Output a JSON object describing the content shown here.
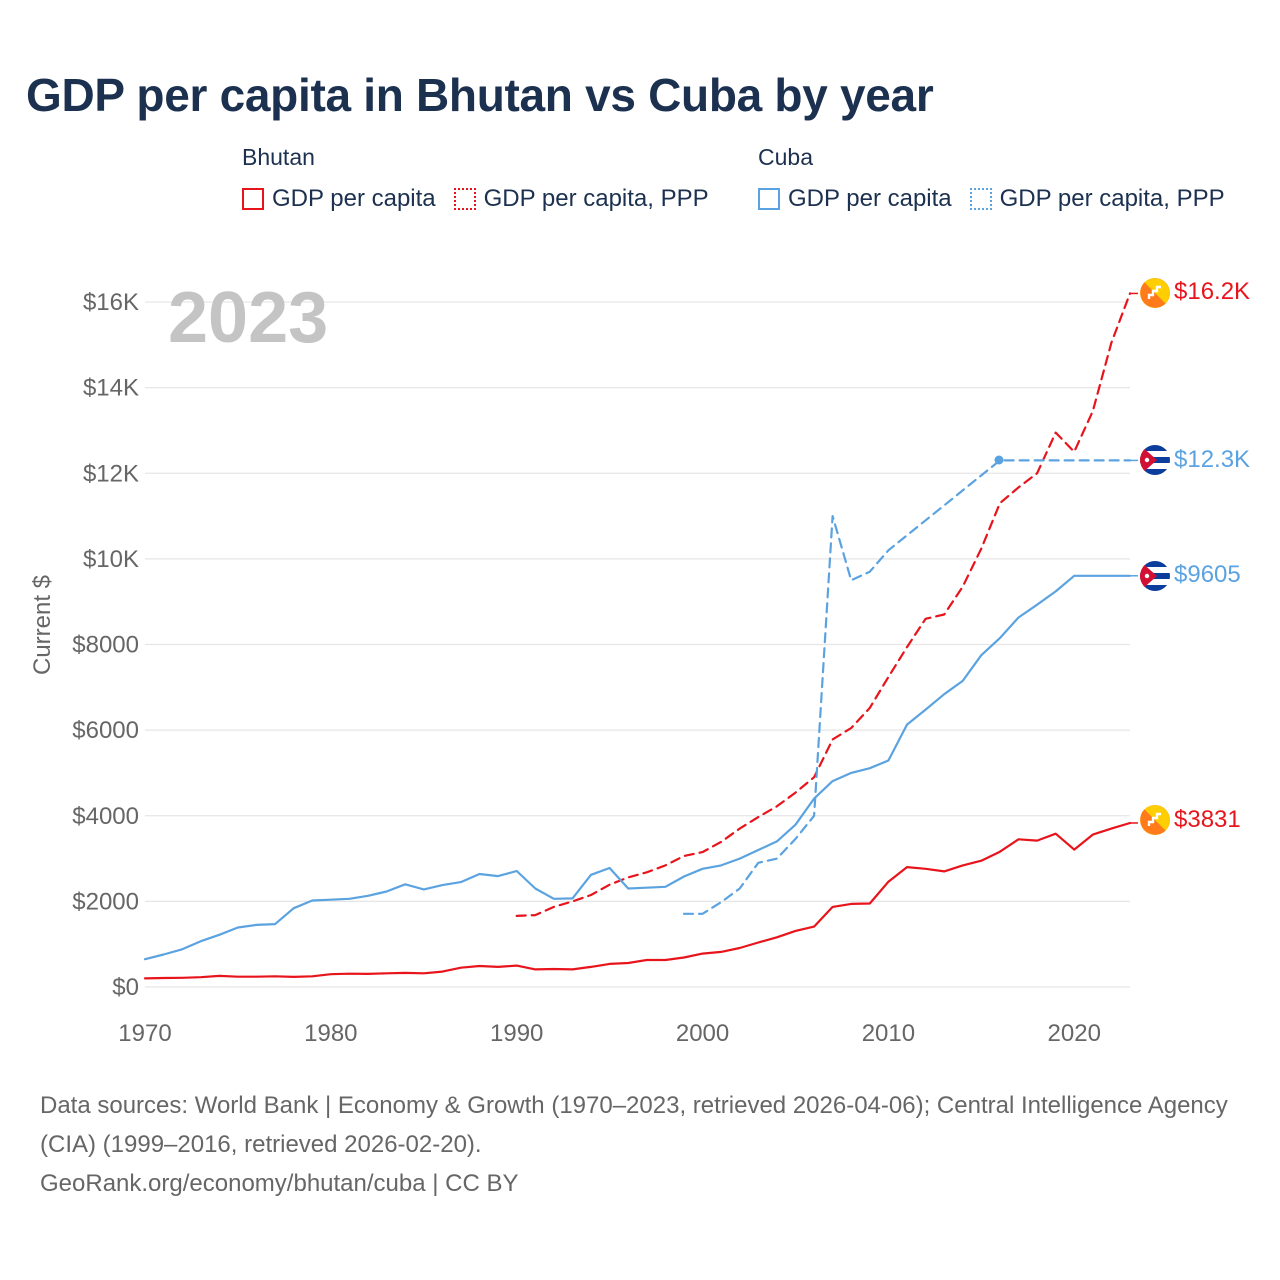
{
  "title": "GDP per capita in Bhutan vs Cuba by year",
  "legend": {
    "groups": [
      {
        "name": "Bhutan",
        "items": [
          {
            "label": "GDP per capita",
            "style": "solid",
            "color": "#e8141c"
          },
          {
            "label": "GDP per capita, PPP",
            "style": "dotted",
            "color": "#e8141c"
          }
        ]
      },
      {
        "name": "Cuba",
        "items": [
          {
            "label": "GDP per capita",
            "style": "solid",
            "color": "#5ba3e0"
          },
          {
            "label": "GDP per capita, PPP",
            "style": "dotted",
            "color": "#5ba3e0"
          }
        ]
      }
    ]
  },
  "year_watermark": "2023",
  "end_labels": {
    "bhutan_ppp": "$16.2K",
    "cuba_ppp": "$12.3K",
    "cuba_gdp": "$9605",
    "bhutan_gdp": "$3831"
  },
  "icons": {
    "bhutan_flag": "bhutan-flag-icon",
    "cuba_flag": "cuba-flag-icon"
  },
  "footer": {
    "sources": "Data sources: World Bank | Economy & Growth (1970–2023, retrieved 2026-04-06); Central Intelligence Agency (CIA) (1999–2016, retrieved 2026-02-20).",
    "credit": "GeoRank.org/economy/bhutan/cuba | CC BY"
  },
  "chart_data": {
    "type": "line",
    "title": "GDP per capita in Bhutan vs Cuba by year",
    "xlabel": "",
    "ylabel": "Current $",
    "xlim": [
      1970,
      2023
    ],
    "ylim": [
      0,
      16500
    ],
    "grid": true,
    "x_ticks": [
      1970,
      1980,
      1990,
      2000,
      2010,
      2020
    ],
    "x_tick_labels": [
      "1970",
      "1980",
      "1990",
      "2000",
      "2010",
      "2020"
    ],
    "y_ticks": [
      0,
      2000,
      4000,
      6000,
      8000,
      10000,
      12000,
      14000,
      16000
    ],
    "y_tick_labels": [
      "$0",
      "$2000",
      "$4000",
      "$6000",
      "$8000",
      "$10K",
      "$12K",
      "$14K",
      "$16K"
    ],
    "series": [
      {
        "name": "Bhutan GDP per capita",
        "color": "#e8141c",
        "dash": "solid",
        "x": [
          1970,
          1971,
          1972,
          1973,
          1974,
          1975,
          1976,
          1977,
          1978,
          1979,
          1980,
          1981,
          1982,
          1983,
          1984,
          1985,
          1986,
          1987,
          1988,
          1989,
          1990,
          1991,
          1992,
          1993,
          1994,
          1995,
          1996,
          1997,
          1998,
          1999,
          2000,
          2001,
          2002,
          2003,
          2004,
          2005,
          2006,
          2007,
          2008,
          2009,
          2010,
          2011,
          2012,
          2013,
          2014,
          2015,
          2016,
          2017,
          2018,
          2019,
          2020,
          2021,
          2022,
          2023
        ],
        "values": [
          200,
          210,
          215,
          230,
          260,
          240,
          240,
          250,
          235,
          250,
          300,
          310,
          305,
          320,
          330,
          320,
          360,
          450,
          490,
          470,
          500,
          410,
          420,
          410,
          470,
          540,
          560,
          630,
          630,
          690,
          780,
          820,
          910,
          1040,
          1160,
          1310,
          1410,
          1870,
          1940,
          1950,
          2460,
          2800,
          2760,
          2700,
          2840,
          2950,
          3160,
          3450,
          3420,
          3580,
          3210,
          3560,
          3700,
          3831
        ]
      },
      {
        "name": "Bhutan GDP per capita, PPP",
        "color": "#e8141c",
        "dash": "dashed",
        "x": [
          1990,
          1991,
          1992,
          1993,
          1994,
          1995,
          1996,
          1997,
          1998,
          1999,
          2000,
          2001,
          2002,
          2003,
          2004,
          2005,
          2006,
          2007,
          2008,
          2009,
          2010,
          2011,
          2012,
          2013,
          2014,
          2015,
          2016,
          2017,
          2018,
          2019,
          2020,
          2021,
          2022,
          2023
        ],
        "values": [
          1660,
          1680,
          1870,
          2000,
          2150,
          2390,
          2560,
          2680,
          2840,
          3060,
          3150,
          3390,
          3700,
          3970,
          4220,
          4540,
          4900,
          5780,
          6050,
          6520,
          7240,
          7940,
          8600,
          8700,
          9350,
          10240,
          11300,
          11670,
          12000,
          12950,
          12500,
          13450,
          15050,
          16200
        ]
      },
      {
        "name": "Cuba GDP per capita",
        "color": "#5ba3e0",
        "dash": "solid",
        "x": [
          1970,
          1971,
          1972,
          1973,
          1974,
          1975,
          1976,
          1977,
          1978,
          1979,
          1980,
          1981,
          1982,
          1983,
          1984,
          1985,
          1986,
          1987,
          1988,
          1989,
          1990,
          1991,
          1992,
          1993,
          1994,
          1995,
          1996,
          1997,
          1998,
          1999,
          2000,
          2001,
          2002,
          2003,
          2004,
          2005,
          2006,
          2007,
          2008,
          2009,
          2010,
          2011,
          2012,
          2013,
          2014,
          2015,
          2016,
          2017,
          2018,
          2019,
          2020,
          2021,
          2022,
          2023
        ],
        "values": [
          650,
          760,
          880,
          1070,
          1220,
          1390,
          1450,
          1470,
          1840,
          2020,
          2040,
          2060,
          2130,
          2230,
          2400,
          2280,
          2380,
          2450,
          2640,
          2590,
          2710,
          2300,
          2060,
          2070,
          2620,
          2780,
          2300,
          2320,
          2340,
          2580,
          2760,
          2840,
          3000,
          3200,
          3400,
          3790,
          4400,
          4810,
          5000,
          5110,
          5290,
          6130,
          6480,
          6840,
          7150,
          7750,
          8150,
          8630,
          8930,
          9240,
          9605,
          9605,
          9605,
          9605
        ]
      },
      {
        "name": "Cuba GDP per capita, PPP",
        "color": "#5ba3e0",
        "dash": "dashed",
        "x": [
          1999,
          2000,
          2001,
          2002,
          2003,
          2004,
          2005,
          2006,
          2007,
          2008,
          2009,
          2010,
          2011,
          2012,
          2013,
          2014,
          2015,
          2016,
          2023
        ],
        "values": [
          1710,
          1710,
          1980,
          2300,
          2900,
          3000,
          3460,
          4000,
          11000,
          9500,
          9700,
          10200,
          10550,
          10900,
          11250,
          11600,
          11950,
          12300,
          12300
        ]
      }
    ]
  }
}
